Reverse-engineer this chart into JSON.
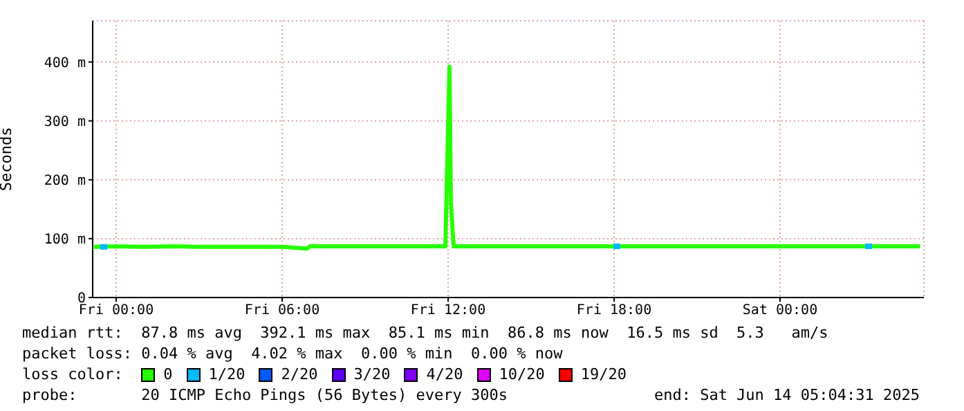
{
  "chart_data": {
    "type": "line",
    "ylabel": "Seconds",
    "legend_title": "loss color:",
    "legend": "bottom",
    "grid": true,
    "marker": "none",
    "line_style": "solid",
    "xlim": [
      "2025-06-12T23:09",
      "2025-06-14T05:12"
    ],
    "xticks": [
      {
        "value": "2025-06-13T00:00",
        "label": "Fri 00:00"
      },
      {
        "value": "2025-06-13T06:00",
        "label": "Fri 06:00"
      },
      {
        "value": "2025-06-13T12:00",
        "label": "Fri 12:00"
      },
      {
        "value": "2025-06-13T18:00",
        "label": "Fri 18:00"
      },
      {
        "value": "2025-06-14T00:00",
        "label": "Sat 00:00"
      }
    ],
    "ylim": [
      0,
      470
    ],
    "yticks": [
      0,
      {
        "value": 100,
        "label": "100 m"
      },
      {
        "value": 200,
        "label": "200 m"
      },
      {
        "value": 300,
        "label": "300 m"
      },
      {
        "value": 400,
        "label": "400 m"
      }
    ],
    "series": [
      {
        "name": "0",
        "color": "#26ff00",
        "x": [
          "2025-06-12T23:12",
          "2025-06-13T00:00",
          "2025-06-13T01:00",
          "2025-06-13T02:00",
          "2025-06-13T03:00",
          "2025-06-13T04:00",
          "2025-06-13T05:00",
          "2025-06-13T06:00",
          "2025-06-13T06:54",
          "2025-06-13T07:00",
          "2025-06-13T08:00",
          "2025-06-13T09:00",
          "2025-06-13T10:00",
          "2025-06-13T11:00",
          "2025-06-13T11:54",
          "2025-06-13T12:03",
          "2025-06-13T12:06",
          "2025-06-13T12:12",
          "2025-06-13T13:00",
          "2025-06-13T14:00",
          "2025-06-13T15:00",
          "2025-06-13T16:00",
          "2025-06-13T17:00",
          "2025-06-13T18:00",
          "2025-06-13T19:00",
          "2025-06-13T20:00",
          "2025-06-13T21:00",
          "2025-06-13T22:00",
          "2025-06-13T23:00",
          "2025-06-14T00:00",
          "2025-06-14T01:00",
          "2025-06-14T02:00",
          "2025-06-14T03:00",
          "2025-06-14T04:00",
          "2025-06-14T05:04"
        ],
        "values": [
          86,
          87,
          86,
          87,
          86,
          86,
          86,
          86,
          83,
          87,
          87,
          87,
          87,
          87,
          87,
          392,
          160,
          87,
          87,
          87,
          87,
          87,
          87,
          87,
          87,
          87,
          87,
          87,
          87,
          87,
          87,
          87,
          87,
          87,
          87
        ]
      },
      {
        "name": "1/20",
        "color": "#00b8ff",
        "type": "scatter",
        "marker": "square",
        "x": [
          "2025-06-12T23:33",
          "2025-06-13T18:06",
          "2025-06-14T03:12"
        ],
        "values": [
          86,
          87,
          87
        ]
      },
      {
        "name": "2/20",
        "color": "#0059ff"
      },
      {
        "name": "3/20",
        "color": "#5e00ff"
      },
      {
        "name": "4/20",
        "color": "#7e00ff"
      },
      {
        "name": "10/20",
        "color": "#dd00ff"
      },
      {
        "name": "19/20",
        "color": "#ff0000"
      }
    ],
    "annotations": [
      "median rtt:  87.8 ms avg  392.1 ms max  85.1 ms min  86.8 ms now  16.5 ms sd  5.3   am/s",
      "packet loss: 0.04 % avg  4.02 % max  0.00 % min  0.00 % now",
      "probe:       20 ICMP Echo Pings (56 Bytes) every 300s                end: Sat Jun 14 05:04:31 2025"
    ]
  }
}
